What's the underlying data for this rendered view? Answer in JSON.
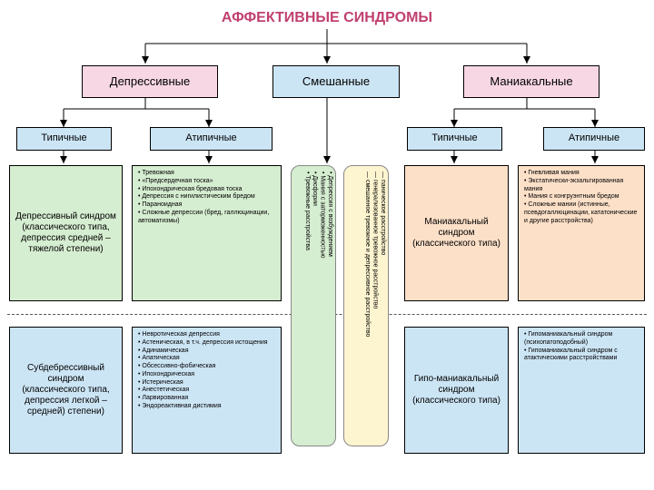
{
  "colors": {
    "pink": "#f8d7e5",
    "blue": "#cce5f5",
    "green": "#d5edd0",
    "yellow": "#fdf4d0",
    "orange": "#fde0c8",
    "title_text": "#c04070"
  },
  "title": "АФФЕКТИВНЫЕ СИНДРОМЫ",
  "level1": {
    "depressive": "Депрессивные",
    "mixed": "Смешанные",
    "manic": "Маниакальные"
  },
  "level2": {
    "typical_l": "Типичные",
    "atypical_l": "Атипичные",
    "typical_r": "Типичные",
    "atypical_r": "Атипичные"
  },
  "dep_typ1": "Депрессивный синдром (классического типа, депрессия средней – тяжелой степени)",
  "dep_typ2": "Субдебрессивный синдром (классического типа, депрессия легкой – средней) степени)",
  "dep_atyp1": [
    "• Тревожная",
    "• «Предсердечная тоска»",
    "• Ипохондрическая бредовая тоска",
    "• Депрессия с нигилистическим бредом",
    "• Параноидная",
    "• Сложные депрессии (бред, галлюцинации, автоматизмы)"
  ],
  "dep_atyp2": [
    "• Невротическая депрессия",
    "• Астеническая, в т.ч. депрессия истощения",
    "• Адинамическая",
    "• Апатическая",
    "• Обсессивно-фобическая",
    "• Ипохондрическая",
    "• Истерическая",
    "• Анестетическая",
    "• Ларвированная",
    "• Эндореактивная дистимия"
  ],
  "mixed_col1": [
    "• Депрессия с возбуждением",
    "• Мания с заторможенностью",
    "• Дисфории",
    "• Тревожные расстройства",
    "  — паническое расстройство",
    "  — генерализованное тревожное расстройство",
    "  — смешанное тревожное и депрессивное расстройство"
  ],
  "man_typ1": "Маниакальный синдром (классического типа)",
  "man_typ2": "Гипо-маниакальный синдром (классического типа)",
  "man_atyp1": [
    "• Гневливая мания",
    "• Экстатически-экзальтированная мания",
    "• Мания с конгруэнтным бредом",
    "• Сложные мании (истинные, псевдогаллюцинации, кататонические и другие расстройства)"
  ],
  "man_atyp2": [
    "• Гипоманиакальный синдром (психопатоподобный)",
    "• Гипоманиакальный синдром с атактическими расстройствами"
  ]
}
